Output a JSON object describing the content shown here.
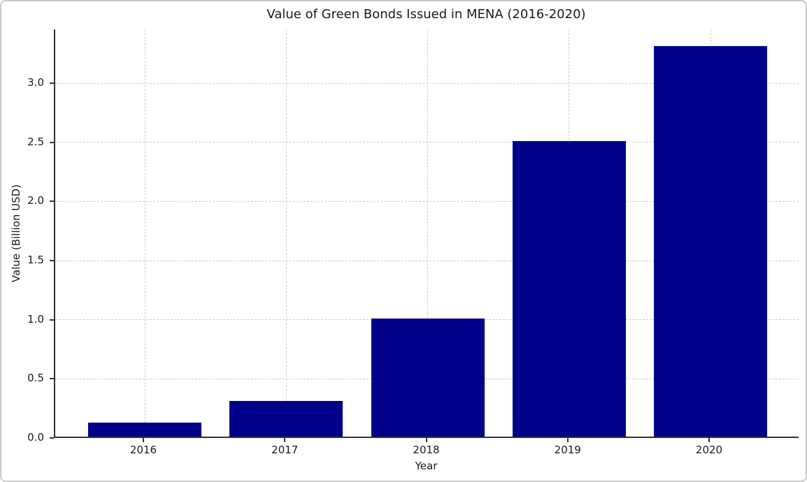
{
  "chart_data": {
    "type": "bar",
    "title": "Value of Green Bonds Issued in MENA (2016-2020)",
    "xlabel": "Year",
    "ylabel": "Value (Billion USD)",
    "categories": [
      "2016",
      "2017",
      "2018",
      "2019",
      "2020"
    ],
    "values": [
      0.12,
      0.3,
      1.0,
      2.5,
      3.3
    ],
    "ytick_labels": [
      "0.0",
      "0.5",
      "1.0",
      "1.5",
      "2.0",
      "2.5",
      "3.0"
    ],
    "ytick_values": [
      0.0,
      0.5,
      1.0,
      1.5,
      2.0,
      2.5,
      3.0
    ],
    "ylim": [
      0,
      3.455
    ],
    "grid": "dashed, both axes",
    "legend": "none",
    "bar_color": "#00008B",
    "grid_color": "#cccccc",
    "spine_color": "#333333",
    "text_color": "#1a1a1a"
  }
}
